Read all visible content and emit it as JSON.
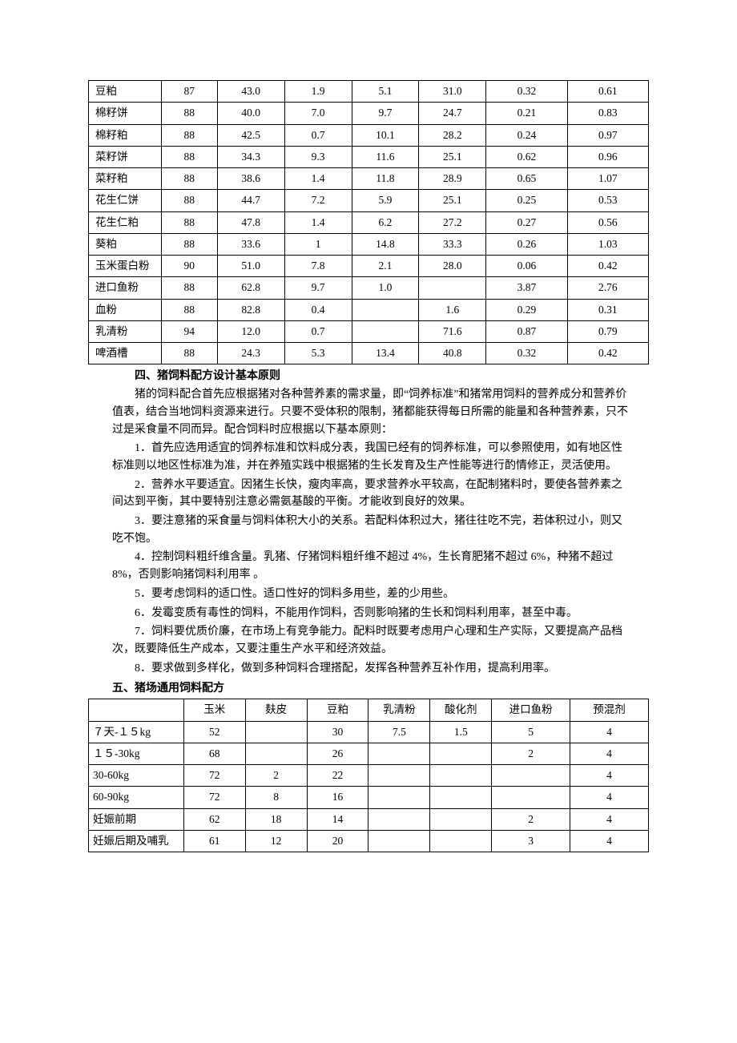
{
  "table1": {
    "col_widths_pct": [
      13,
      10,
      12,
      12,
      12,
      12,
      14.5,
      14.5
    ],
    "rows": [
      {
        "label": "豆粕",
        "c1": "87",
        "c2": "43.0",
        "c3": "1.9",
        "c4": "5.1",
        "c5": "31.0",
        "c6": "0.32",
        "c7": "0.61"
      },
      {
        "label": "棉籽饼",
        "c1": "88",
        "c2": "40.0",
        "c3": "7.0",
        "c4": "9.7",
        "c5": "24.7",
        "c6": "0.21",
        "c7": "0.83"
      },
      {
        "label": "棉籽粕",
        "c1": "88",
        "c2": "42.5",
        "c3": "0.7",
        "c4": "10.1",
        "c5": "28.2",
        "c6": "0.24",
        "c7": "0.97"
      },
      {
        "label": "菜籽饼",
        "c1": "88",
        "c2": "34.3",
        "c3": "9.3",
        "c4": "11.6",
        "c5": "25.1",
        "c6": "0.62",
        "c7": "0.96"
      },
      {
        "label": "菜籽粕",
        "c1": "88",
        "c2": "38.6",
        "c3": "1.4",
        "c4": "11.8",
        "c5": "28.9",
        "c6": "0.65",
        "c7": "1.07"
      },
      {
        "label": "花生仁饼",
        "c1": "88",
        "c2": "44.7",
        "c3": "7.2",
        "c4": "5.9",
        "c5": "25.1",
        "c6": "0.25",
        "c7": "0.53"
      },
      {
        "label": "花生仁粕",
        "c1": "88",
        "c2": "47.8",
        "c3": "1.4",
        "c4": "6.2",
        "c5": "27.2",
        "c6": "0.27",
        "c7": "0.56"
      },
      {
        "label": "葵粕",
        "c1": "88",
        "c2": "33.6",
        "c3": "1",
        "c4": "14.8",
        "c5": "33.3",
        "c6": "0.26",
        "c7": "1.03"
      },
      {
        "label": "玉米蛋白粉",
        "c1": "90",
        "c2": "51.0",
        "c3": "7.8",
        "c4": "2.1",
        "c5": "28.0",
        "c6": "0.06",
        "c7": "0.42"
      },
      {
        "label": "进口鱼粉",
        "c1": "88",
        "c2": "62.8",
        "c3": "9.7",
        "c4": "1.0",
        "c5": "",
        "c6": "3.87",
        "c7": "2.76"
      },
      {
        "label": "血粉",
        "c1": "88",
        "c2": "82.8",
        "c3": "0.4",
        "c4": "",
        "c5": "1.6",
        "c6": "0.29",
        "c7": "0.31"
      },
      {
        "label": "乳清粉",
        "c1": "94",
        "c2": "12.0",
        "c3": "0.7",
        "c4": "",
        "c5": "71.6",
        "c6": "0.87",
        "c7": "0.79"
      },
      {
        "label": "啤酒槽",
        "c1": "88",
        "c2": "24.3",
        "c3": "5.3",
        "c4": "13.4",
        "c5": "40.8",
        "c6": "0.32",
        "c7": "0.42"
      }
    ]
  },
  "section4_title": "四、猪饲料配方设计基本原则",
  "section4_paras": [
    "猪的饲料配合首先应根据猪对各种营养素的需求量，即“饲养标准”和猪常用饲料的营养成分和营养价值表，结合当地饲料资源来进行。只要不受体积的限制，猪都能获得每日所需的能量和各种营养素，只不过是采食量不同而异。配合饲料时应根据以下基本原则：",
    "1．首先应选用适宜的饲养标准和饮料成分表，我国已经有的饲养标准，可以参照使用，如有地区性标准则以地区性标准为准，并在养殖实践中根据猪的生长发育及生产性能等进行酌情修正，灵活使用。",
    "2．营养水平要适宜。因猪生长快，瘦肉率高，要求营养水平较高，在配制猪料时，要使各营养素之间达到平衡，其中要特别注意必需氨基酸的平衡。才能收到良好的效果。",
    "3．要注意猪的采食量与饲料体积大小的关系。若配料体积过大，猪往往吃不完，若体积过小，则又吃不饱。",
    "4．控制饲料粗纤维含量。乳猪、仔猪饲料粗纤维不超过 4%，生长育肥猪不超过 6%，种猪不超过 8%，否则影响猪饲料利用率 。",
    "5．要考虑饲料的适口性。适口性好的饲料多用些，差的少用些。",
    "6．发霉变质有毒性的饲料，不能用作饲料，否则影响猪的生长和饲料利用率，甚至中毒。",
    "7．饲料要优质价廉，在市场上有竞争能力。配料时既要考虑用户心理和生产实际，又要提高产品档次，既要降低生产成本，又要注重生产水平和经济效益。",
    "8．要求做到多样化，做到多种饲料合理搭配，发挥各种营养互补作用，提高利用率。"
  ],
  "section5_title": "五、猪场通用饲料配方",
  "table2": {
    "col_widths_pct": [
      17,
      11,
      11,
      11,
      11,
      11,
      14,
      14
    ],
    "headers": [
      "",
      "玉米",
      "麸皮",
      "豆粕",
      "乳清粉",
      "酸化剂",
      "进口鱼粉",
      "预混剂"
    ],
    "rows": [
      {
        "label": "７天-１５kg",
        "c1": "52",
        "c2": "",
        "c3": "30",
        "c4": "7.5",
        "c5": "1.5",
        "c6": "5",
        "c7": "4"
      },
      {
        "label": "１５-30kg",
        "c1": "68",
        "c2": "",
        "c3": "26",
        "c4": "",
        "c5": "",
        "c6": "2",
        "c7": "4"
      },
      {
        "label": "30-60kg",
        "c1": "72",
        "c2": "2",
        "c3": "22",
        "c4": "",
        "c5": "",
        "c6": "",
        "c7": "4"
      },
      {
        "label": "60-90kg",
        "c1": "72",
        "c2": "8",
        "c3": "16",
        "c4": "",
        "c5": "",
        "c6": "",
        "c7": "4"
      },
      {
        "label": "妊娠前期",
        "c1": "62",
        "c2": "18",
        "c3": "14",
        "c4": "",
        "c5": "",
        "c6": "2",
        "c7": "4"
      },
      {
        "label": "妊娠后期及哺乳",
        "c1": "61",
        "c2": "12",
        "c3": "20",
        "c4": "",
        "c5": "",
        "c6": "3",
        "c7": "4"
      }
    ]
  }
}
